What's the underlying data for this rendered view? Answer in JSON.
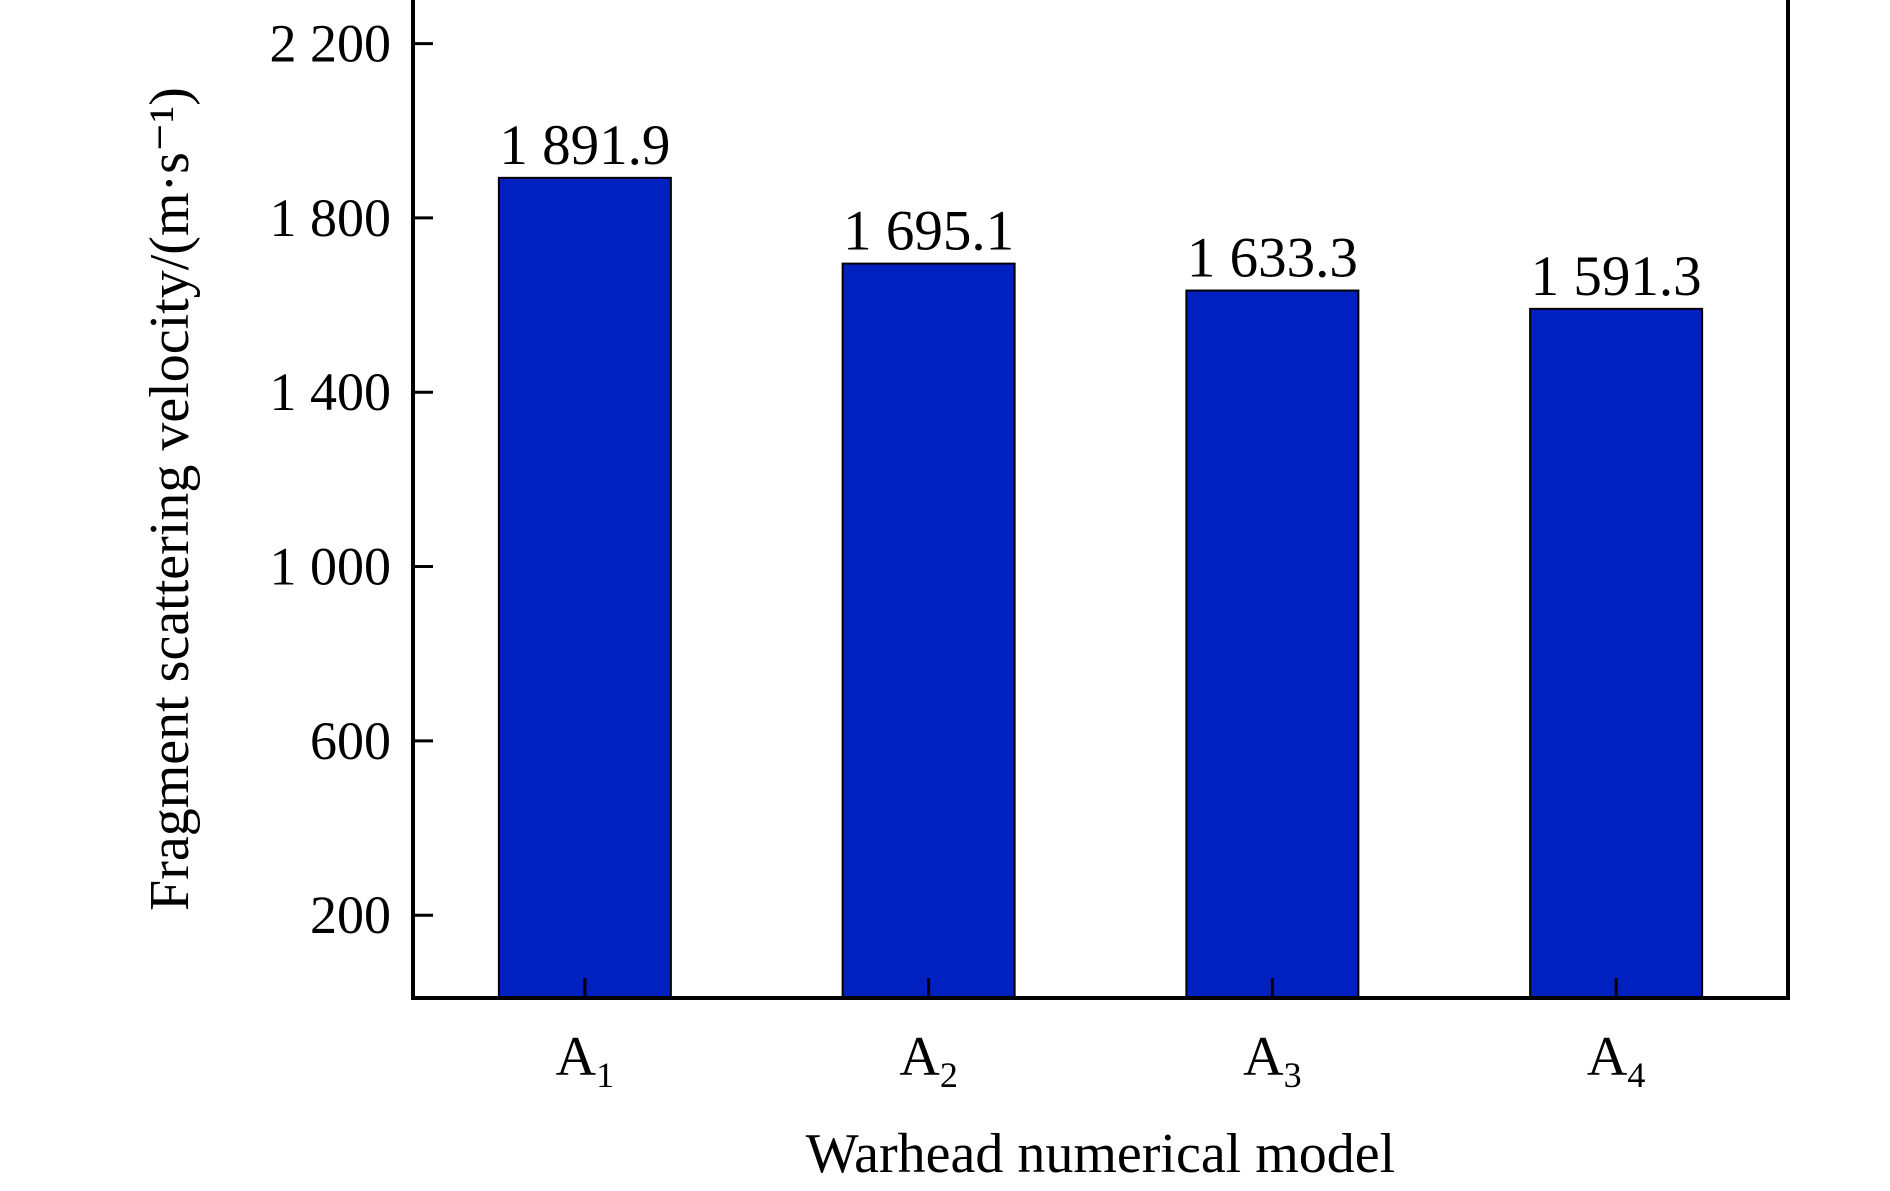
{
  "chart_data": {
    "type": "bar",
    "title": "",
    "xlabel": "Warhead numerical model",
    "ylabel": "Fragment scattering velocity/(m·s⁻¹)",
    "categories": [
      {
        "main": "A",
        "sub": "1"
      },
      {
        "main": "A",
        "sub": "2"
      },
      {
        "main": "A",
        "sub": "3"
      },
      {
        "main": "A",
        "sub": "4"
      }
    ],
    "values": [
      1891.9,
      1695.1,
      1633.3,
      1591.3
    ],
    "value_labels": [
      "1 891.9",
      "1 695.1",
      "1 633.3",
      "1 591.3"
    ],
    "yticks": [
      200,
      600,
      1000,
      1400,
      1800,
      2200
    ],
    "ytick_labels": [
      "200",
      "600",
      "1 000",
      "1 400",
      "1 800",
      "2 200"
    ],
    "ylim": [
      10,
      2300
    ],
    "bar_color": "#0020c0",
    "grid": false,
    "legend": "none"
  }
}
